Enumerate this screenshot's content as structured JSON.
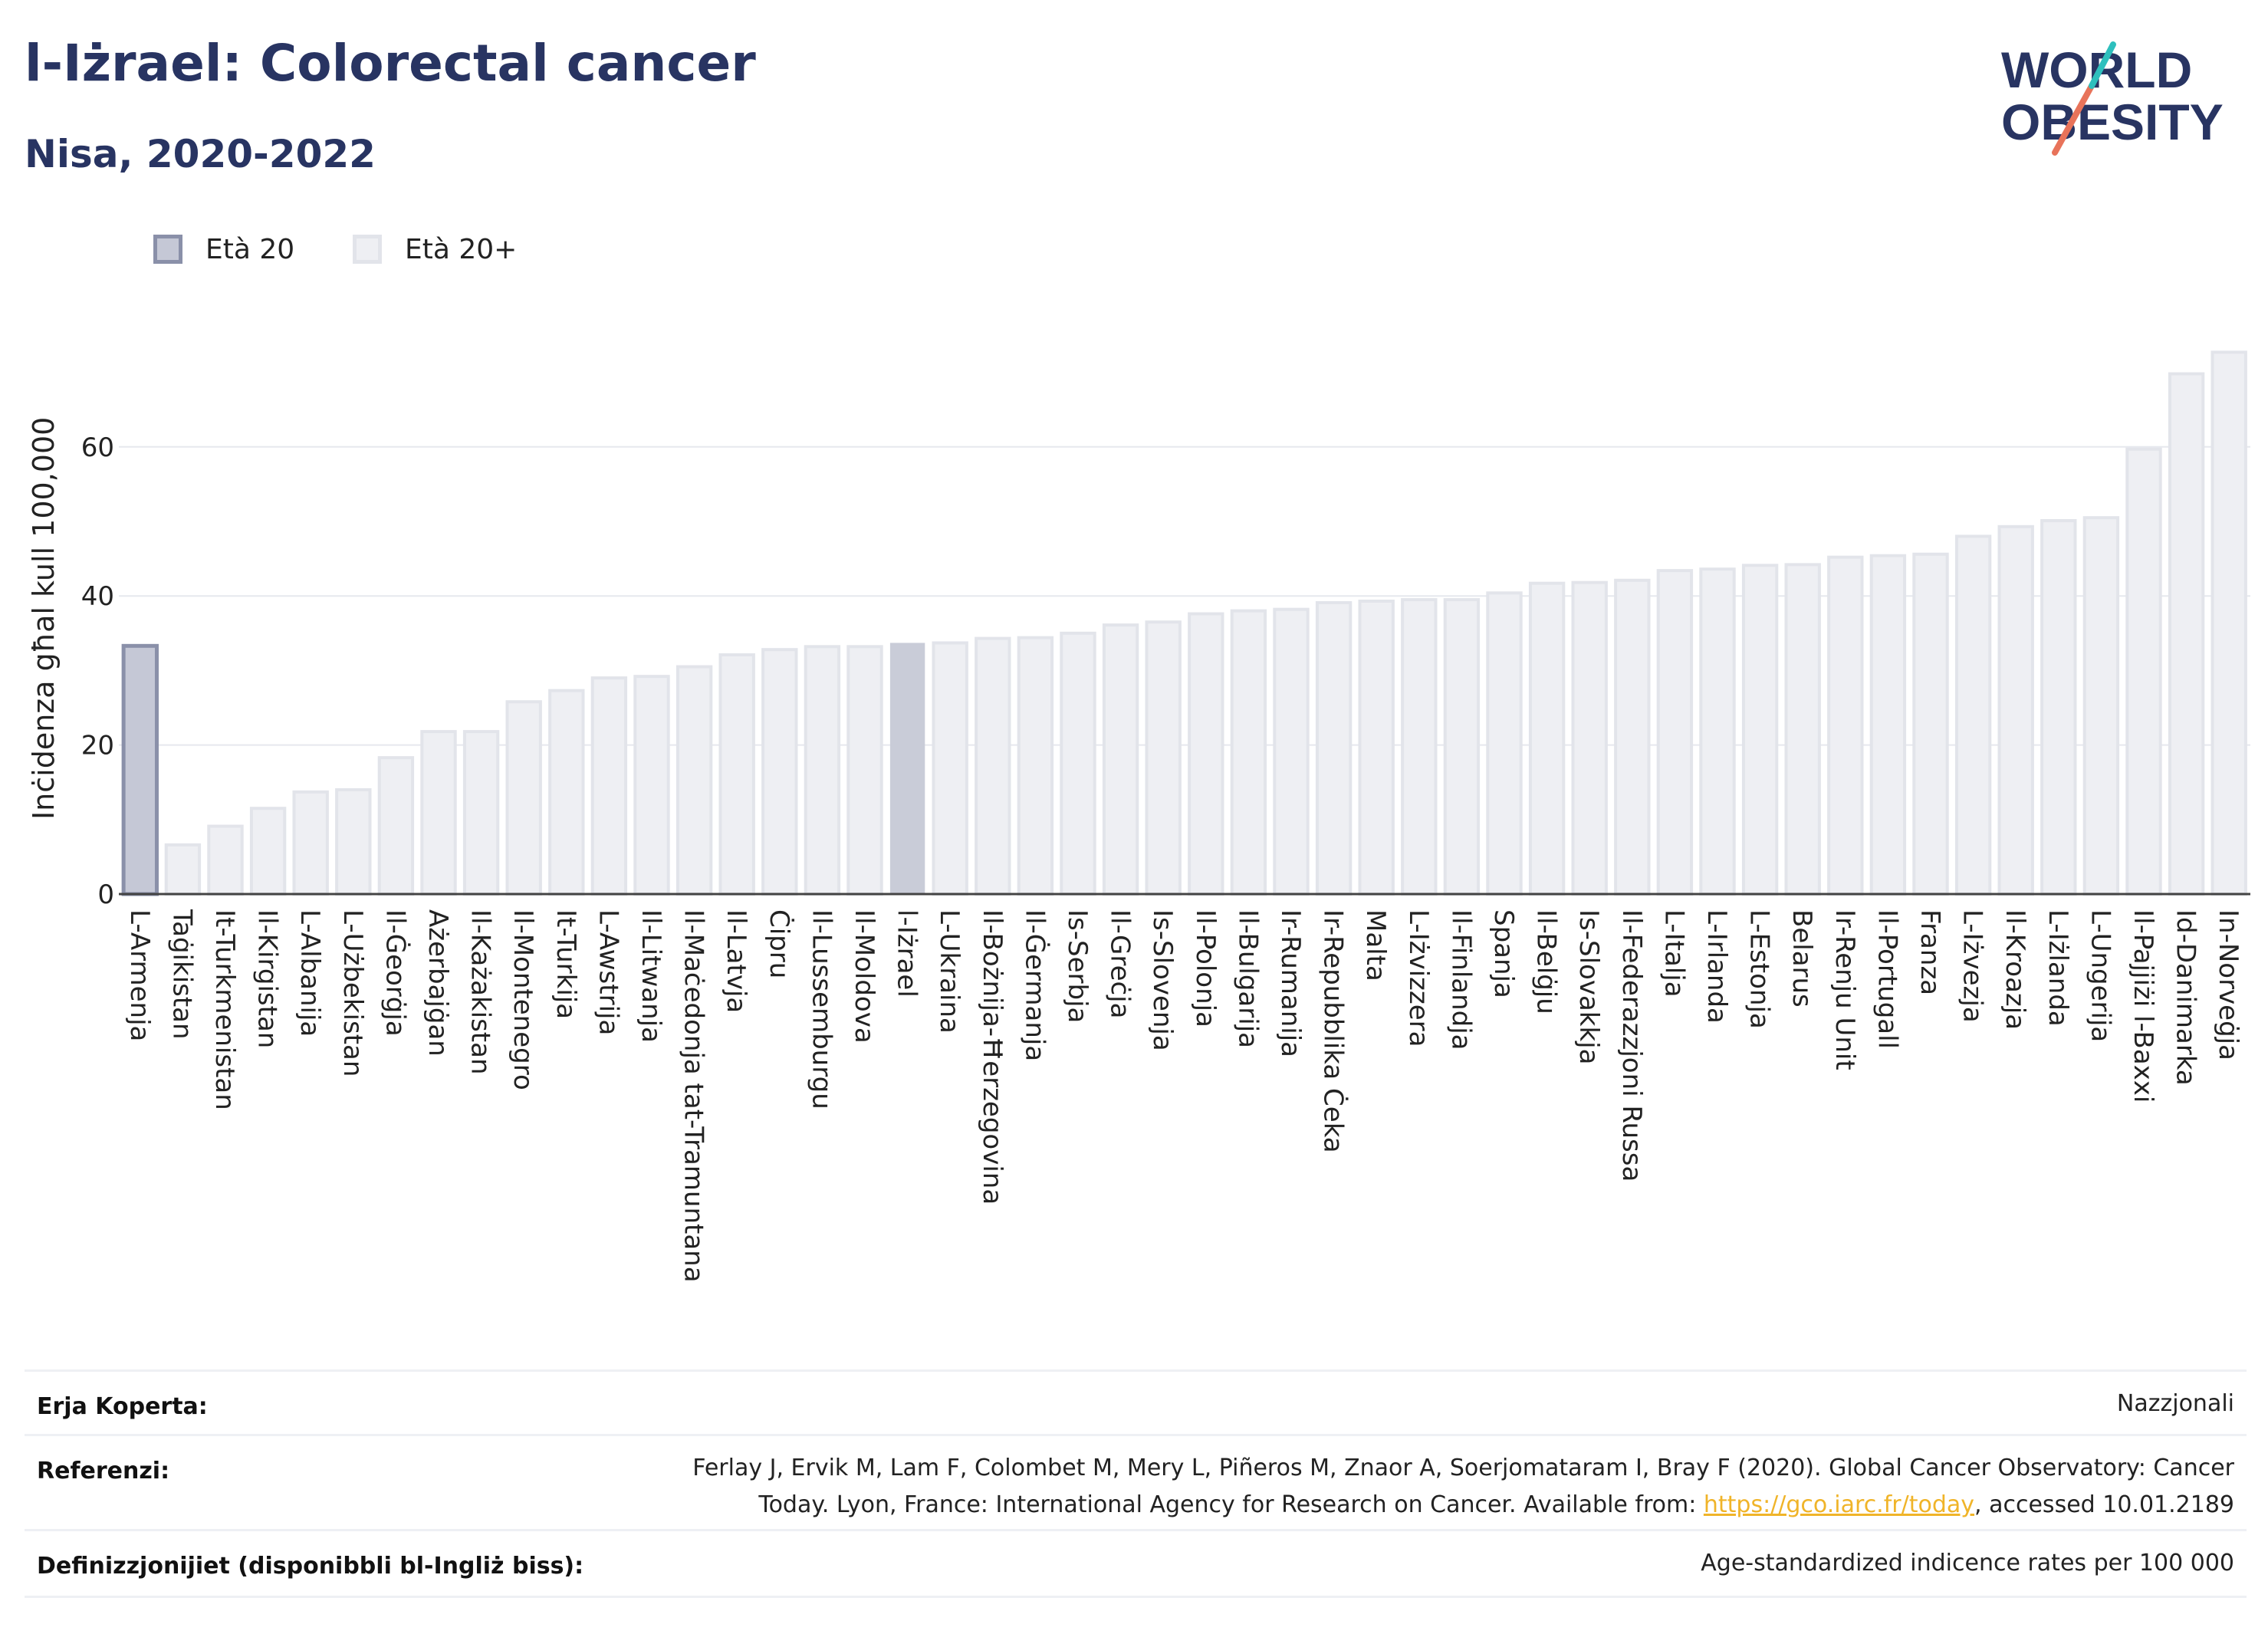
{
  "header": {
    "title": "l-Iżrael: Colorectal cancer",
    "subtitle": "Nisa, 2020-2022"
  },
  "logo": {
    "line1": "WORLD",
    "line2": "OBESITY"
  },
  "legend": [
    {
      "label": "Età 20",
      "fill": "#c5c8d6",
      "stroke": "#8a90a9"
    },
    {
      "label": "Età 20+",
      "fill": "#eeeff3",
      "stroke": "#e2e4ea"
    }
  ],
  "chart_data": {
    "type": "bar",
    "ylabel": "Inċidenza għal kull 100,000",
    "xlabel": "",
    "ylim": [
      0,
      74
    ],
    "yticks": [
      0,
      20,
      40,
      60
    ],
    "grid": true,
    "highlight_category": "L-Armenja",
    "selected_category": "l-Iżrael",
    "categories": [
      "L-Armenja",
      "Taġikistan",
      "It-Turkmenistan",
      "Il-Kirgistan",
      "L-Albanija",
      "L-Użbekistan",
      "Il-Ġeorġja",
      "Ażerbajġan",
      "Il-Każakistan",
      "Il-Montenegro",
      "It-Turkija",
      "L-Awstrija",
      "Il-Litwanja",
      "Il-Maċedonja tat-Tramuntana",
      "Il-Latvja",
      "Ċipru",
      "Il-Lussemburgu",
      "Il-Moldova",
      "l-Iżrael",
      "L-Ukraina",
      "Il-Bożnija-Ħerzegovina",
      "Il-Ġermanja",
      "Is-Serbja",
      "Il-Greċja",
      "Is-Slovenja",
      "Il-Polonja",
      "Il-Bulgarija",
      "Ir-Rumanija",
      "Ir-Repubblika Ċeka",
      "Malta",
      "L-Iżvizzera",
      "Il-Finlandja",
      "Spanja",
      "Il-Belġju",
      "Is-Slovakkja",
      "Il-Federazzjoni Russa",
      "L-Italja",
      "L-Irlanda",
      "L-Estonja",
      "Belarus",
      "Ir-Renju Unit",
      "Il-Portugall",
      "Franza",
      "L-Iżvezja",
      "Il-Kroazja",
      "L-Iżlanda",
      "L-Ungerija",
      "Il-Pajjiżi l-Baxxi",
      "Id-Danimarka",
      "In-Norveġja"
    ],
    "values": [
      33.3,
      6.6,
      9.1,
      11.5,
      13.7,
      14.0,
      18.3,
      21.8,
      21.8,
      25.8,
      27.3,
      29.0,
      29.2,
      30.5,
      32.1,
      32.8,
      33.2,
      33.2,
      33.6,
      33.7,
      34.3,
      34.4,
      35.0,
      36.1,
      36.5,
      37.6,
      38.0,
      38.2,
      39.1,
      39.3,
      39.5,
      39.5,
      40.4,
      41.7,
      41.8,
      42.1,
      43.4,
      43.6,
      44.1,
      44.2,
      45.2,
      45.4,
      45.6,
      48.0,
      49.3,
      50.1,
      50.5,
      59.7,
      69.8,
      72.7
    ]
  },
  "footer": {
    "rows": [
      {
        "label": "Erja Koperta:",
        "value_lines": [
          "Nazzjonali"
        ]
      },
      {
        "label": "Referenzi:",
        "value_lines": [
          "Ferlay J, Ervik M, Lam F, Colombet M, Mery L, Piñeros M, Znaor A, Soerjomataram I, Bray F (2020). Global Cancer Observatory: Cancer",
          "Today. Lyon, France: International Agency for Research on Cancer. Available from: "
        ],
        "link": "https://gco.iarc.fr/today",
        "suffix": ", accessed 10.01.2189"
      },
      {
        "label": "Definizzjonijiet (disponibbli bl-Ingliż biss):",
        "value_lines": [
          "Age-standardized indicence rates per 100 000"
        ]
      }
    ]
  }
}
